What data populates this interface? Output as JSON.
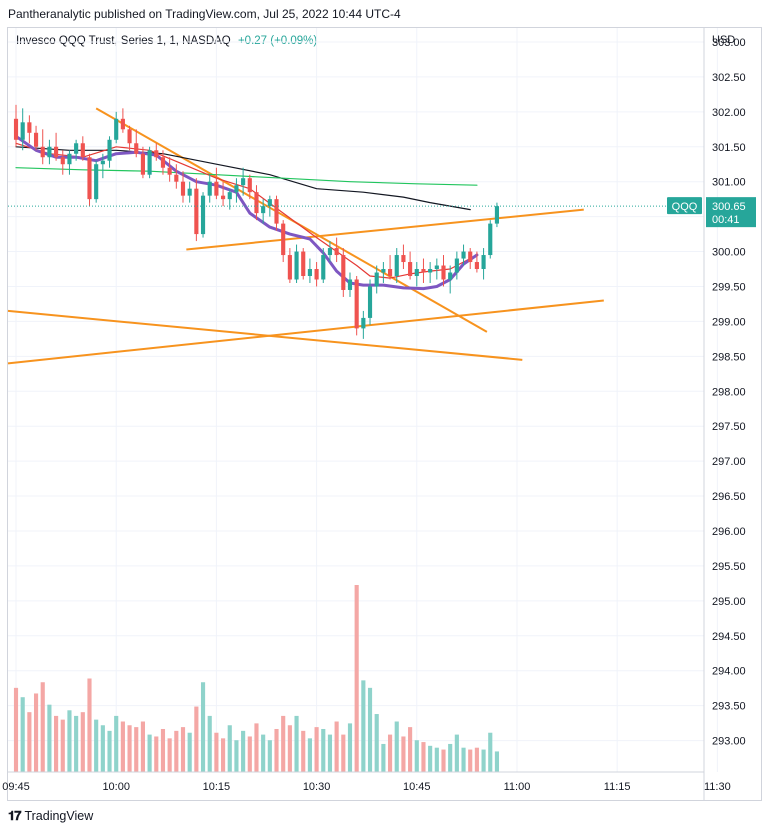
{
  "header": {
    "publisher": "Pantheranalytic published on TradingView.com, Jul 25, 2022 10:44 UTC-4"
  },
  "legend": {
    "symbol_text": "Invesco QQQ Trust, Series 1, 1, NASDAQ",
    "change_text": "+0.27 (+0.09%)"
  },
  "price_axis": {
    "currency": "USD"
  },
  "last_price_label": {
    "ticker": "QQQ",
    "price": "300.65",
    "countdown": "00:41"
  },
  "footer": {
    "brand": "TradingView"
  },
  "colors": {
    "up": "#26a69a",
    "down": "#ef5350",
    "up_vol": "#8fd3cb",
    "down_vol": "#f4a7a5",
    "trend": "#f7931e",
    "ma_fast": "#e53935",
    "ma_mid": "#7e57c2",
    "ma_slow": "#131722",
    "ma_long": "#22c55e"
  },
  "chart_data": {
    "type": "candlestick",
    "title": "Invesco QQQ Trust, Series 1, 1, NASDAQ",
    "x_ticks": [
      "09:45",
      "10:00",
      "10:15",
      "10:30",
      "10:45",
      "11:00",
      "11:15",
      "11:30"
    ],
    "y_ticks": [
      "303.00",
      "302.50",
      "302.00",
      "301.50",
      "301.00",
      "300.50",
      "300.00",
      "299.50",
      "299.00",
      "298.50",
      "298.00",
      "297.50",
      "297.00",
      "296.50",
      "296.00",
      "295.50",
      "295.00",
      "294.50",
      "294.00",
      "293.50",
      "293.00"
    ],
    "ylim": [
      292.55,
      303.2
    ],
    "xlim_minutes": [
      -1.2,
      103
    ],
    "bars": [
      {
        "o": 301.9,
        "h": 302.1,
        "l": 301.5,
        "c": 301.6,
        "v": 0.45
      },
      {
        "o": 301.6,
        "h": 302.05,
        "l": 301.45,
        "c": 301.85,
        "v": 0.4
      },
      {
        "o": 301.85,
        "h": 301.95,
        "l": 301.55,
        "c": 301.7,
        "v": 0.32
      },
      {
        "o": 301.7,
        "h": 301.8,
        "l": 301.45,
        "c": 301.5,
        "v": 0.42
      },
      {
        "o": 301.5,
        "h": 301.75,
        "l": 301.25,
        "c": 301.35,
        "v": 0.48
      },
      {
        "o": 301.35,
        "h": 301.6,
        "l": 301.25,
        "c": 301.5,
        "v": 0.36
      },
      {
        "o": 301.5,
        "h": 301.7,
        "l": 301.3,
        "c": 301.35,
        "v": 0.3
      },
      {
        "o": 301.35,
        "h": 301.45,
        "l": 301.1,
        "c": 301.25,
        "v": 0.28
      },
      {
        "o": 301.25,
        "h": 301.45,
        "l": 301.1,
        "c": 301.4,
        "v": 0.33
      },
      {
        "o": 301.4,
        "h": 301.6,
        "l": 301.3,
        "c": 301.55,
        "v": 0.3
      },
      {
        "o": 301.55,
        "h": 301.65,
        "l": 301.3,
        "c": 301.35,
        "v": 0.32
      },
      {
        "o": 301.35,
        "h": 301.4,
        "l": 300.65,
        "c": 300.75,
        "v": 0.5
      },
      {
        "o": 300.75,
        "h": 301.3,
        "l": 300.7,
        "c": 301.25,
        "v": 0.28
      },
      {
        "o": 301.25,
        "h": 301.4,
        "l": 301.05,
        "c": 301.3,
        "v": 0.25
      },
      {
        "o": 301.3,
        "h": 301.65,
        "l": 301.2,
        "c": 301.6,
        "v": 0.22
      },
      {
        "o": 301.6,
        "h": 302.0,
        "l": 301.55,
        "c": 301.9,
        "v": 0.3
      },
      {
        "o": 301.9,
        "h": 302.05,
        "l": 301.7,
        "c": 301.75,
        "v": 0.27
      },
      {
        "o": 301.75,
        "h": 301.8,
        "l": 301.45,
        "c": 301.55,
        "v": 0.25
      },
      {
        "o": 301.55,
        "h": 301.75,
        "l": 301.35,
        "c": 301.4,
        "v": 0.24
      },
      {
        "o": 301.4,
        "h": 301.5,
        "l": 301.05,
        "c": 301.1,
        "v": 0.27
      },
      {
        "o": 301.1,
        "h": 301.5,
        "l": 301.05,
        "c": 301.45,
        "v": 0.2
      },
      {
        "o": 301.45,
        "h": 301.55,
        "l": 301.3,
        "c": 301.35,
        "v": 0.19
      },
      {
        "o": 301.35,
        "h": 301.45,
        "l": 301.1,
        "c": 301.2,
        "v": 0.23
      },
      {
        "o": 301.2,
        "h": 301.35,
        "l": 301.0,
        "c": 301.1,
        "v": 0.18
      },
      {
        "o": 301.1,
        "h": 301.25,
        "l": 300.9,
        "c": 301.0,
        "v": 0.22
      },
      {
        "o": 301.0,
        "h": 301.15,
        "l": 300.7,
        "c": 300.8,
        "v": 0.24
      },
      {
        "o": 300.8,
        "h": 301.0,
        "l": 300.7,
        "c": 300.9,
        "v": 0.21
      },
      {
        "o": 300.9,
        "h": 301.05,
        "l": 300.15,
        "c": 300.25,
        "v": 0.35
      },
      {
        "o": 300.25,
        "h": 300.85,
        "l": 300.2,
        "c": 300.8,
        "v": 0.48
      },
      {
        "o": 300.8,
        "h": 301.1,
        "l": 300.7,
        "c": 301.0,
        "v": 0.3
      },
      {
        "o": 301.0,
        "h": 301.2,
        "l": 300.75,
        "c": 300.8,
        "v": 0.21
      },
      {
        "o": 300.8,
        "h": 301.0,
        "l": 300.65,
        "c": 300.75,
        "v": 0.18
      },
      {
        "o": 300.75,
        "h": 300.9,
        "l": 300.6,
        "c": 300.85,
        "v": 0.25
      },
      {
        "o": 300.85,
        "h": 301.05,
        "l": 300.7,
        "c": 300.95,
        "v": 0.17
      },
      {
        "o": 300.95,
        "h": 301.2,
        "l": 300.8,
        "c": 301.05,
        "v": 0.22
      },
      {
        "o": 301.05,
        "h": 301.1,
        "l": 300.75,
        "c": 300.85,
        "v": 0.19
      },
      {
        "o": 300.85,
        "h": 300.95,
        "l": 300.45,
        "c": 300.55,
        "v": 0.26
      },
      {
        "o": 300.55,
        "h": 300.75,
        "l": 300.4,
        "c": 300.65,
        "v": 0.2
      },
      {
        "o": 300.65,
        "h": 300.8,
        "l": 300.5,
        "c": 300.75,
        "v": 0.17
      },
      {
        "o": 300.75,
        "h": 300.8,
        "l": 300.3,
        "c": 300.4,
        "v": 0.23
      },
      {
        "o": 300.4,
        "h": 300.45,
        "l": 299.85,
        "c": 299.95,
        "v": 0.3
      },
      {
        "o": 299.95,
        "h": 300.05,
        "l": 299.55,
        "c": 299.6,
        "v": 0.25
      },
      {
        "o": 299.6,
        "h": 300.1,
        "l": 299.55,
        "c": 300.0,
        "v": 0.3
      },
      {
        "o": 300.0,
        "h": 300.05,
        "l": 299.6,
        "c": 299.65,
        "v": 0.22
      },
      {
        "o": 299.65,
        "h": 299.9,
        "l": 299.55,
        "c": 299.75,
        "v": 0.18
      },
      {
        "o": 299.75,
        "h": 299.85,
        "l": 299.5,
        "c": 299.6,
        "v": 0.24
      },
      {
        "o": 299.6,
        "h": 300.05,
        "l": 299.55,
        "c": 299.95,
        "v": 0.23
      },
      {
        "o": 299.95,
        "h": 300.15,
        "l": 299.85,
        "c": 300.05,
        "v": 0.2
      },
      {
        "o": 300.05,
        "h": 300.2,
        "l": 299.85,
        "c": 299.95,
        "v": 0.27
      },
      {
        "o": 299.95,
        "h": 300.05,
        "l": 299.35,
        "c": 299.45,
        "v": 0.2
      },
      {
        "o": 299.45,
        "h": 299.7,
        "l": 299.35,
        "c": 299.6,
        "v": 0.26
      },
      {
        "o": 299.6,
        "h": 299.65,
        "l": 298.8,
        "c": 298.9,
        "v": 1.0
      },
      {
        "o": 298.9,
        "h": 299.15,
        "l": 298.75,
        "c": 299.05,
        "v": 0.49
      },
      {
        "o": 299.05,
        "h": 299.6,
        "l": 298.95,
        "c": 299.5,
        "v": 0.45
      },
      {
        "o": 299.5,
        "h": 299.8,
        "l": 299.4,
        "c": 299.7,
        "v": 0.31
      },
      {
        "o": 299.7,
        "h": 299.85,
        "l": 299.55,
        "c": 299.75,
        "v": 0.15
      },
      {
        "o": 299.75,
        "h": 299.95,
        "l": 299.6,
        "c": 299.65,
        "v": 0.2
      },
      {
        "o": 299.65,
        "h": 300.05,
        "l": 299.55,
        "c": 299.95,
        "v": 0.27
      },
      {
        "o": 299.95,
        "h": 300.1,
        "l": 299.75,
        "c": 299.85,
        "v": 0.19
      },
      {
        "o": 299.85,
        "h": 300.0,
        "l": 299.6,
        "c": 299.65,
        "v": 0.24
      },
      {
        "o": 299.65,
        "h": 299.85,
        "l": 299.5,
        "c": 299.75,
        "v": 0.17
      },
      {
        "o": 299.75,
        "h": 299.9,
        "l": 299.55,
        "c": 299.7,
        "v": 0.16
      },
      {
        "o": 299.7,
        "h": 299.85,
        "l": 299.55,
        "c": 299.75,
        "v": 0.14
      },
      {
        "o": 299.75,
        "h": 299.9,
        "l": 299.6,
        "c": 299.8,
        "v": 0.13
      },
      {
        "o": 299.8,
        "h": 299.95,
        "l": 299.5,
        "c": 299.6,
        "v": 0.12
      },
      {
        "o": 299.6,
        "h": 299.8,
        "l": 299.4,
        "c": 299.7,
        "v": 0.15
      },
      {
        "o": 299.7,
        "h": 300.0,
        "l": 299.6,
        "c": 299.9,
        "v": 0.2
      },
      {
        "o": 299.9,
        "h": 300.1,
        "l": 299.8,
        "c": 300.0,
        "v": 0.13
      },
      {
        "o": 300.0,
        "h": 300.05,
        "l": 299.75,
        "c": 299.85,
        "v": 0.12
      },
      {
        "o": 299.85,
        "h": 300.0,
        "l": 299.7,
        "c": 299.75,
        "v": 0.13
      },
      {
        "o": 299.75,
        "h": 300.05,
        "l": 299.6,
        "c": 299.95,
        "v": 0.12
      },
      {
        "o": 299.95,
        "h": 300.45,
        "l": 299.9,
        "c": 300.4,
        "v": 0.21
      },
      {
        "o": 300.4,
        "h": 300.7,
        "l": 300.35,
        "c": 300.65,
        "v": 0.11
      }
    ],
    "indicators": [
      {
        "name": "ma_slow",
        "points": [
          [
            0,
            301.5
          ],
          [
            8,
            301.45
          ],
          [
            15,
            301.45
          ],
          [
            22,
            301.4
          ],
          [
            30,
            301.25
          ],
          [
            38,
            301.1
          ],
          [
            45,
            300.9
          ],
          [
            52,
            300.85
          ],
          [
            58,
            300.78
          ],
          [
            62,
            300.7
          ],
          [
            65,
            300.65
          ],
          [
            68,
            300.6
          ]
        ]
      },
      {
        "name": "ma_long",
        "points": [
          [
            0,
            301.2
          ],
          [
            10,
            301.17
          ],
          [
            20,
            301.15
          ],
          [
            30,
            301.1
          ],
          [
            40,
            301.05
          ],
          [
            50,
            301.0
          ],
          [
            60,
            300.97
          ],
          [
            69,
            300.95
          ]
        ]
      },
      {
        "name": "ma_fast",
        "points": [
          [
            0,
            301.55
          ],
          [
            5,
            301.4
          ],
          [
            10,
            301.35
          ],
          [
            15,
            301.5
          ],
          [
            20,
            301.45
          ],
          [
            25,
            301.25
          ],
          [
            30,
            301.05
          ],
          [
            35,
            300.9
          ],
          [
            40,
            300.55
          ],
          [
            45,
            300.2
          ],
          [
            48,
            300.0
          ],
          [
            51,
            299.8
          ],
          [
            53,
            299.65
          ],
          [
            56,
            299.62
          ],
          [
            59,
            299.68
          ],
          [
            62,
            299.72
          ],
          [
            65,
            299.75
          ],
          [
            67,
            299.85
          ],
          [
            69,
            299.95
          ]
        ]
      },
      {
        "name": "ma_mid",
        "points": [
          [
            0,
            301.65
          ],
          [
            3,
            301.45
          ],
          [
            6,
            301.35
          ],
          [
            9,
            301.35
          ],
          [
            12,
            301.3
          ],
          [
            15,
            301.4
          ],
          [
            18,
            301.42
          ],
          [
            21,
            301.38
          ],
          [
            24,
            301.15
          ],
          [
            27,
            301.0
          ],
          [
            30,
            300.95
          ],
          [
            33,
            300.85
          ],
          [
            35,
            300.55
          ],
          [
            38,
            300.35
          ],
          [
            41,
            300.25
          ],
          [
            44,
            300.18
          ],
          [
            46,
            299.98
          ],
          [
            48,
            299.72
          ],
          [
            50,
            299.55
          ],
          [
            52,
            299.52
          ],
          [
            55,
            299.52
          ],
          [
            58,
            299.48
          ],
          [
            61,
            299.47
          ],
          [
            63,
            299.5
          ],
          [
            65,
            299.6
          ],
          [
            67,
            299.82
          ],
          [
            69,
            299.95
          ]
        ]
      }
    ],
    "trendlines": [
      {
        "from": [
          -1.2,
          299.15
        ],
        "to": [
          75.8,
          298.45
        ]
      },
      {
        "from": [
          -1.2,
          298.4
        ],
        "to": [
          88,
          299.3
        ]
      },
      {
        "from": [
          12,
          302.05
        ],
        "to": [
          70.5,
          298.85
        ]
      },
      {
        "from": [
          25.5,
          300.03
        ],
        "to": [
          85,
          300.6
        ]
      }
    ]
  }
}
